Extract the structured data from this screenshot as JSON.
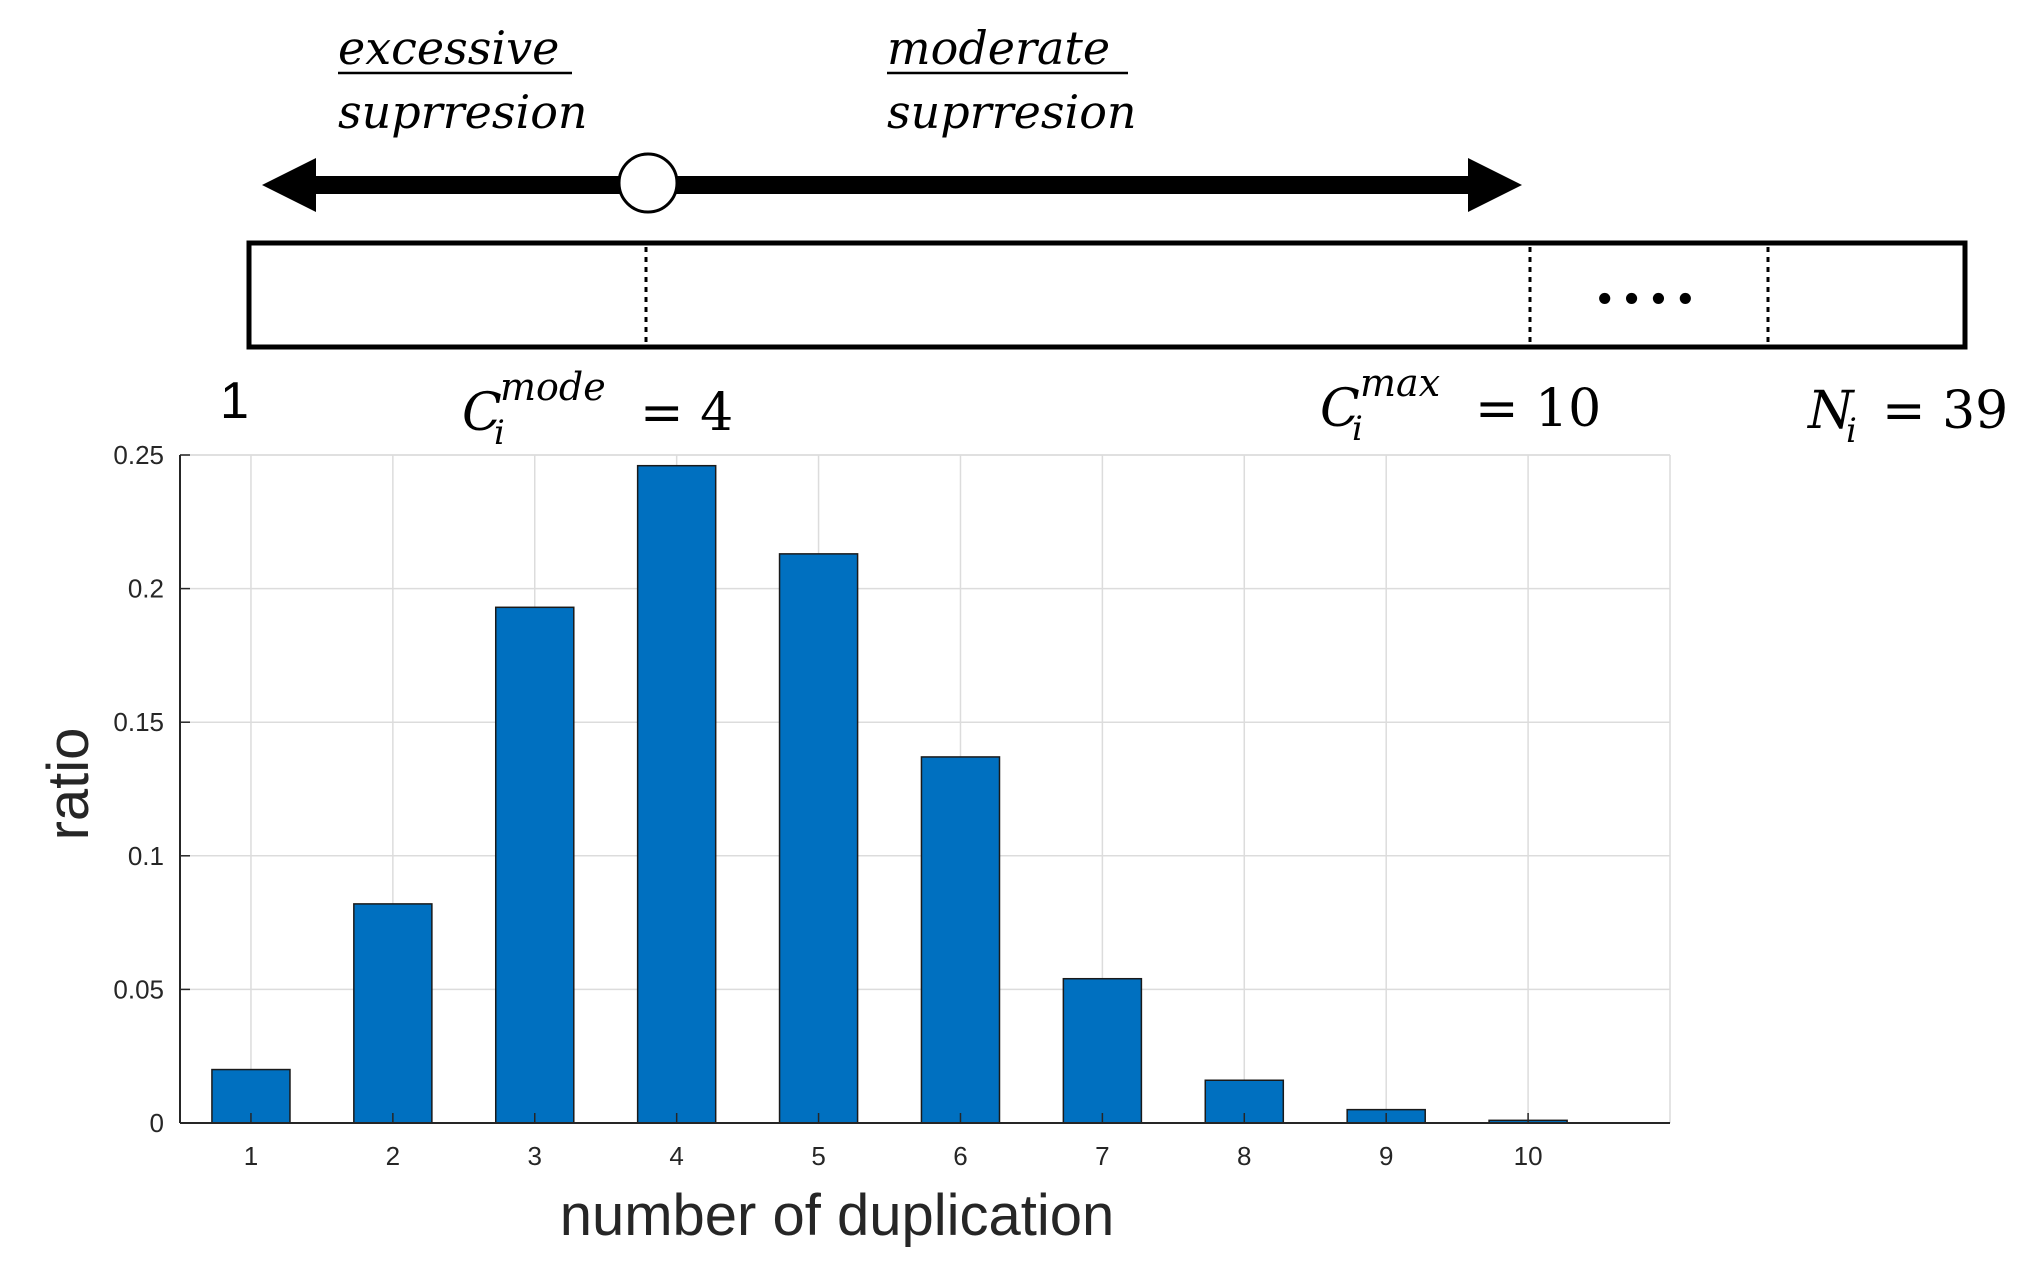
{
  "diagram": {
    "excessive_label_line1": "excessive",
    "excessive_label_line2": "suprresion",
    "moderate_label_line1": "moderate",
    "moderate_label_line2": "suprresion",
    "ellipsis": "....",
    "label_start": "1",
    "mode_symbol": "C",
    "mode_subscript": "i",
    "mode_superscript": "mode",
    "mode_value": "= 4",
    "max_symbol": "C",
    "max_subscript": "i",
    "max_superscript": "max",
    "max_value": "= 10",
    "n_symbol": "N",
    "n_subscript": "i",
    "n_value": "= 39"
  },
  "chart_data": {
    "type": "bar",
    "categories": [
      "1",
      "2",
      "3",
      "4",
      "5",
      "6",
      "7",
      "8",
      "9",
      "10"
    ],
    "values": [
      0.02,
      0.082,
      0.193,
      0.246,
      0.213,
      0.137,
      0.054,
      0.016,
      0.005,
      0.001
    ],
    "title": "",
    "xlabel": "number of duplication",
    "ylabel": "ratio",
    "ylim": [
      0,
      0.25
    ],
    "xlim": [
      0.5,
      11
    ],
    "yticks": [
      0,
      0.05,
      0.1,
      0.15,
      0.2,
      0.25
    ],
    "ytick_labels": [
      "0",
      "0.05",
      "0.1",
      "0.15",
      "0.2",
      "0.25"
    ],
    "grid": true,
    "bar_color": "#0070C0"
  }
}
